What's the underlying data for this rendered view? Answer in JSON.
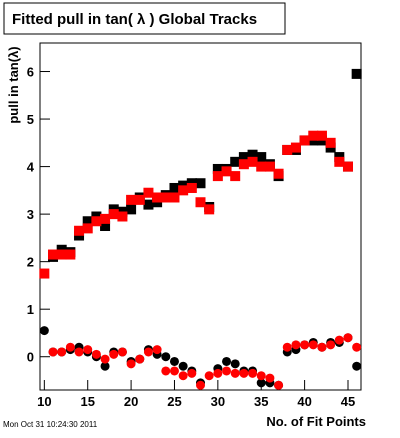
{
  "chart_data": {
    "type": "scatter",
    "title": "Fitted pull in tan( λ )  Global Tracks",
    "y_label": "pull in tan(λ)",
    "x_label": "No. of Fit Points",
    "timestamp": "Mon Oct 31 10:24:30 2011",
    "x": [
      10,
      11,
      12,
      13,
      14,
      15,
      16,
      17,
      18,
      19,
      20,
      21,
      22,
      23,
      24,
      25,
      26,
      27,
      28,
      29,
      30,
      31,
      32,
      33,
      34,
      35,
      36,
      37,
      38,
      39,
      40,
      41,
      42,
      43,
      44,
      45,
      46
    ],
    "xlim": [
      9.5,
      46.5
    ],
    "xticks": [
      10,
      15,
      20,
      25,
      30,
      35,
      40,
      45
    ],
    "ylim": [
      -0.7,
      6.6
    ],
    "yticks": [
      0,
      1,
      2,
      3,
      4,
      5,
      6
    ],
    "series": [
      {
        "color": "#000000",
        "marker": "square",
        "values": [
          null,
          2.1,
          2.25,
          2.2,
          2.55,
          2.85,
          2.95,
          2.75,
          3.1,
          3.05,
          3.1,
          3.35,
          3.2,
          3.25,
          3.4,
          3.55,
          3.6,
          3.65,
          3.65,
          3.15,
          3.95,
          3.95,
          4.1,
          4.2,
          4.25,
          4.2,
          4.05,
          3.8,
          4.35,
          4.35,
          4.55,
          4.55,
          4.55,
          4.4,
          4.2,
          4.0,
          5.95
        ]
      },
      {
        "color": "#ff0000",
        "marker": "square",
        "values": [
          1.75,
          2.15,
          2.15,
          2.15,
          2.65,
          2.7,
          2.85,
          2.9,
          3.0,
          2.95,
          3.3,
          3.3,
          3.45,
          3.35,
          3.35,
          3.35,
          3.5,
          3.55,
          3.25,
          3.1,
          3.8,
          3.9,
          3.8,
          4.05,
          4.1,
          4.0,
          4.0,
          3.85,
          4.35,
          4.4,
          4.55,
          4.65,
          4.65,
          4.5,
          4.1,
          4.0,
          null
        ]
      },
      {
        "color": "#000000",
        "marker": "circle",
        "values": [
          0.55,
          0.1,
          0.1,
          0.15,
          0.2,
          0.1,
          0.0,
          -0.2,
          0.1,
          0.1,
          -0.1,
          -0.05,
          0.15,
          0.05,
          0.0,
          -0.1,
          -0.2,
          -0.3,
          -0.55,
          null,
          -0.25,
          -0.1,
          -0.15,
          -0.3,
          -0.3,
          -0.55,
          -0.55,
          -0.6,
          0.1,
          0.15,
          0.25,
          0.3,
          0.2,
          0.3,
          0.3,
          0.4,
          -0.2
        ]
      },
      {
        "color": "#ff0000",
        "marker": "circle",
        "values": [
          null,
          0.1,
          0.1,
          0.2,
          0.1,
          0.15,
          0.05,
          -0.05,
          0.05,
          0.1,
          -0.15,
          -0.05,
          0.1,
          0.15,
          -0.3,
          -0.3,
          -0.4,
          -0.35,
          -0.6,
          -0.4,
          -0.35,
          -0.3,
          -0.35,
          -0.35,
          -0.35,
          -0.4,
          -0.45,
          -0.6,
          0.2,
          0.25,
          0.25,
          0.25,
          0.2,
          0.25,
          0.35,
          0.4,
          0.2
        ]
      }
    ]
  }
}
